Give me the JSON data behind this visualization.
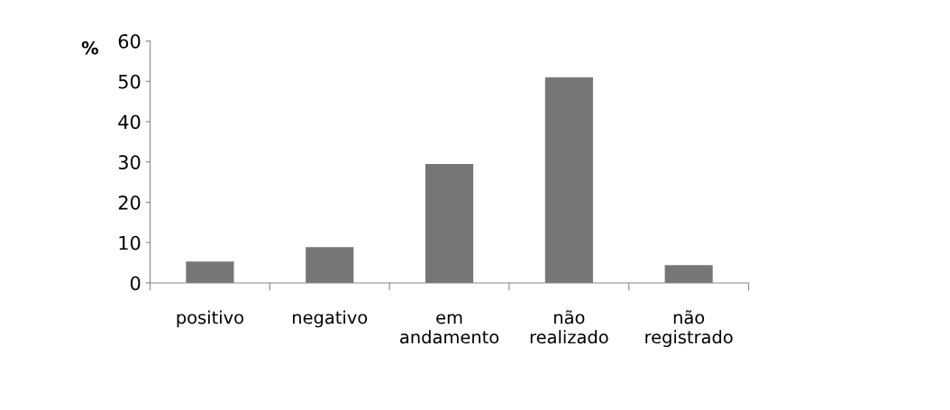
{
  "chart_data": {
    "type": "bar",
    "ylabel": "%",
    "categories": [
      "positivo",
      "negativo",
      "em\nandamento",
      "não\nrealizado",
      "não\nregistrado"
    ],
    "values": [
      5.3,
      8.9,
      29.5,
      51,
      4.4
    ],
    "color": "#767676",
    "ylim": [
      0,
      60
    ],
    "yticks": [
      0,
      10,
      20,
      30,
      40,
      50,
      60
    ],
    "grid": false
  }
}
